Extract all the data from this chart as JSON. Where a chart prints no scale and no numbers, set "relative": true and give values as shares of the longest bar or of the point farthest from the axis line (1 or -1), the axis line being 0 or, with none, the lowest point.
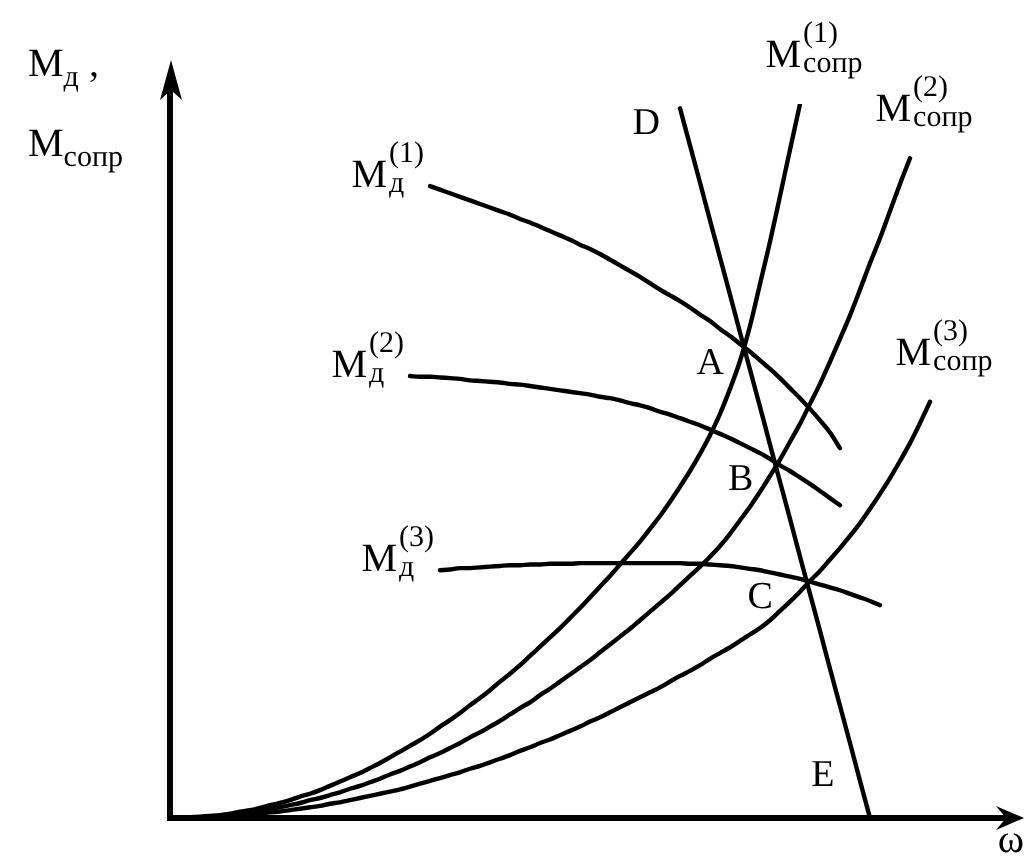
{
  "chart_data": {
    "type": "line",
    "relative": true,
    "xlabel": "ω",
    "ylabel": "M$_{д}$ , M$_{сопр}$",
    "categories": [
      null,
      null,
      null,
      null,
      null,
      null,
      null,
      null,
      null,
      null,
      null,
      null,
      null,
      null,
      null,
      null,
      null,
      null,
      null,
      null,
      null,
      null,
      null,
      null,
      null,
      null,
      null,
      null,
      null,
      null,
      null,
      null,
      null,
      null,
      null,
      null,
      null,
      null,
      null,
      null,
      null,
      null,
      null,
      null,
      null,
      null,
      null,
      null,
      null,
      null,
      null,
      null,
      null,
      null,
      null,
      null,
      null,
      null,
      null,
      null,
      null,
      null,
      null,
      null,
      null,
      null,
      null,
      null,
      null,
      null,
      null,
      null,
      null,
      null,
      null,
      null,
      null,
      null,
      null,
      null,
      null,
      null,
      null,
      null,
      null,
      null
    ],
    "series": [
      {
        "name": "M$^{(1)}$$_{д}$",
        "color": "#000000",
        "values": [
          null,
          null,
          null,
          null,
          null,
          null,
          null,
          null,
          null,
          null,
          null,
          null,
          null,
          null,
          null,
          null,
          null,
          null,
          null,
          null,
          null,
          null,
          null,
          null,
          null,
          null,
          0.885,
          0.88,
          0.875,
          0.87,
          0.865,
          0.86,
          0.855,
          0.85,
          0.845,
          0.839,
          0.834,
          0.828,
          0.822,
          0.816,
          0.81,
          0.803,
          0.797,
          0.79,
          0.782,
          0.774,
          0.766,
          0.758,
          0.749,
          0.74,
          0.732,
          0.724,
          0.715,
          0.705,
          0.696,
          0.685,
          0.675,
          0.664,
          0.653,
          0.641,
          0.629,
          0.616,
          0.602,
          0.588,
          0.573,
          0.557,
          0.54,
          0.518,
          null,
          null,
          null,
          null,
          null,
          null,
          null,
          null,
          null,
          null,
          null,
          null,
          null,
          null,
          null,
          null,
          null,
          null
        ]
      },
      {
        "name": "M$^{(2)}$$_{д}$",
        "color": "#000000",
        "values": [
          null,
          null,
          null,
          null,
          null,
          null,
          null,
          null,
          null,
          null,
          null,
          null,
          null,
          null,
          null,
          null,
          null,
          null,
          null,
          null,
          null,
          null,
          null,
          null,
          0.619,
          0.618,
          0.618,
          0.617,
          0.616,
          0.615,
          0.613,
          0.612,
          0.611,
          0.61,
          0.608,
          0.607,
          0.605,
          0.603,
          0.601,
          0.599,
          0.597,
          0.595,
          0.593,
          0.59,
          0.588,
          0.585,
          0.581,
          0.578,
          0.574,
          0.569,
          0.565,
          0.56,
          0.555,
          0.55,
          0.544,
          0.538,
          0.532,
          0.525,
          0.518,
          0.511,
          0.503,
          0.494,
          0.486,
          0.477,
          0.468,
          0.458,
          0.448,
          0.438,
          null,
          null,
          null,
          null,
          null,
          null,
          null,
          null,
          null,
          null,
          null,
          null,
          null,
          null,
          null,
          null,
          null,
          null
        ]
      },
      {
        "name": "M$^{(3)}$$_{д}$",
        "color": "#000000",
        "values": [
          null,
          null,
          null,
          null,
          null,
          null,
          null,
          null,
          null,
          null,
          null,
          null,
          null,
          null,
          null,
          null,
          null,
          null,
          null,
          null,
          null,
          null,
          null,
          null,
          null,
          null,
          null,
          0.347,
          0.348,
          0.35,
          0.35,
          0.351,
          0.352,
          0.353,
          0.354,
          0.354,
          0.355,
          0.355,
          0.356,
          0.356,
          0.356,
          0.357,
          0.357,
          0.357,
          0.357,
          0.357,
          0.357,
          0.357,
          0.357,
          0.357,
          0.357,
          0.357,
          0.356,
          0.356,
          0.355,
          0.354,
          0.353,
          0.351,
          0.349,
          0.347,
          0.344,
          0.341,
          0.338,
          0.335,
          0.331,
          0.327,
          0.323,
          0.319,
          0.314,
          0.309,
          0.304,
          0.298,
          null,
          null,
          null,
          null,
          null,
          null,
          null,
          null,
          null,
          null,
          null,
          null,
          null,
          null
        ]
      },
      {
        "name": "M$^{(1)}$$_{сопр}$",
        "color": "#000000",
        "values": [
          0,
          0,
          0.001,
          0.002,
          0.003,
          0.004,
          0.006,
          0.009,
          0.011,
          0.014,
          0.018,
          0.021,
          0.025,
          0.03,
          0.034,
          0.039,
          0.045,
          0.051,
          0.057,
          0.063,
          0.07,
          0.077,
          0.085,
          0.093,
          0.101,
          0.109,
          0.118,
          0.128,
          0.137,
          0.147,
          0.158,
          0.168,
          0.179,
          0.191,
          0.202,
          0.214,
          0.227,
          0.24,
          0.253,
          0.266,
          0.28,
          0.294,
          0.309,
          0.324,
          0.339,
          0.355,
          0.371,
          0.387,
          0.405,
          0.423,
          0.443,
          0.464,
          0.486,
          0.51,
          0.536,
          0.566,
          0.601,
          0.64,
          0.689,
          0.748,
          0.807,
          0.871,
          0.936,
          1,
          null,
          null,
          null,
          null,
          null,
          null,
          null,
          null,
          null,
          null,
          null,
          null,
          null,
          null,
          null,
          null,
          null,
          null,
          null,
          null,
          null,
          null
        ]
      },
      {
        "name": "M$^{(2)}$$_{сопр}$",
        "color": "#000000",
        "values": [
          0,
          0,
          0.001,
          0.001,
          0.002,
          0.003,
          0.005,
          0.006,
          0.008,
          0.01,
          0.013,
          0.015,
          0.018,
          0.021,
          0.025,
          0.028,
          0.032,
          0.036,
          0.041,
          0.045,
          0.05,
          0.055,
          0.061,
          0.066,
          0.072,
          0.078,
          0.085,
          0.091,
          0.098,
          0.105,
          0.113,
          0.12,
          0.128,
          0.136,
          0.145,
          0.154,
          0.162,
          0.172,
          0.181,
          0.191,
          0.201,
          0.211,
          0.221,
          0.232,
          0.243,
          0.254,
          0.265,
          0.277,
          0.289,
          0.301,
          0.313,
          0.326,
          0.339,
          0.352,
          0.366,
          0.381,
          0.398,
          0.417,
          0.436,
          0.457,
          0.479,
          0.502,
          0.527,
          0.552,
          0.58,
          0.608,
          0.639,
          0.671,
          0.704,
          0.74,
          0.777,
          0.812,
          0.85,
          0.888,
          0.924,
          null,
          null,
          null,
          null,
          null,
          null,
          null,
          null,
          null,
          null,
          null
        ]
      },
      {
        "name": "M$^{(3)}$$_{сопр}$",
        "color": "#000000",
        "values": [
          0,
          0,
          0,
          0.001,
          0.001,
          0.002,
          0.003,
          0.004,
          0.005,
          0.006,
          0.008,
          0.009,
          0.011,
          0.013,
          0.015,
          0.017,
          0.02,
          0.022,
          0.025,
          0.028,
          0.031,
          0.034,
          0.037,
          0.04,
          0.044,
          0.048,
          0.052,
          0.056,
          0.06,
          0.064,
          0.069,
          0.073,
          0.078,
          0.083,
          0.088,
          0.094,
          0.099,
          0.105,
          0.11,
          0.116,
          0.122,
          0.128,
          0.135,
          0.141,
          0.148,
          0.155,
          0.162,
          0.169,
          0.176,
          0.183,
          0.191,
          0.199,
          0.206,
          0.214,
          0.223,
          0.231,
          0.239,
          0.248,
          0.257,
          0.266,
          0.277,
          0.29,
          0.303,
          0.317,
          0.332,
          0.346,
          0.362,
          0.378,
          0.395,
          0.413,
          0.433,
          0.454,
          0.476,
          0.5,
          0.525,
          0.553,
          0.583,
          null,
          null,
          null,
          null,
          null,
          null,
          null,
          null,
          null
        ]
      },
      {
        "color": "#000000",
        "values": [
          null,
          null,
          null,
          null,
          null,
          null,
          null,
          null,
          null,
          null,
          null,
          null,
          null,
          null,
          null,
          null,
          null,
          null,
          null,
          null,
          null,
          null,
          null,
          null,
          null,
          null,
          null,
          null,
          null,
          null,
          null,
          null,
          null,
          null,
          null,
          null,
          null,
          null,
          null,
          null,
          null,
          null,
          null,
          null,
          null,
          null,
          null,
          null,
          null,
          null,
          null,
          0.994,
          0.942,
          0.89,
          0.837,
          0.785,
          0.733,
          0.68,
          0.628,
          0.576,
          0.523,
          0.471,
          0.419,
          0.366,
          0.314,
          0.262,
          0.209,
          0.157,
          0.105,
          0.052,
          0,
          null,
          null,
          null,
          null,
          null,
          null,
          null,
          null,
          null,
          null,
          null,
          null,
          null,
          null,
          null
        ]
      }
    ],
    "annotations": [
      "D",
      "A",
      "B",
      "C",
      "E"
    ]
  }
}
